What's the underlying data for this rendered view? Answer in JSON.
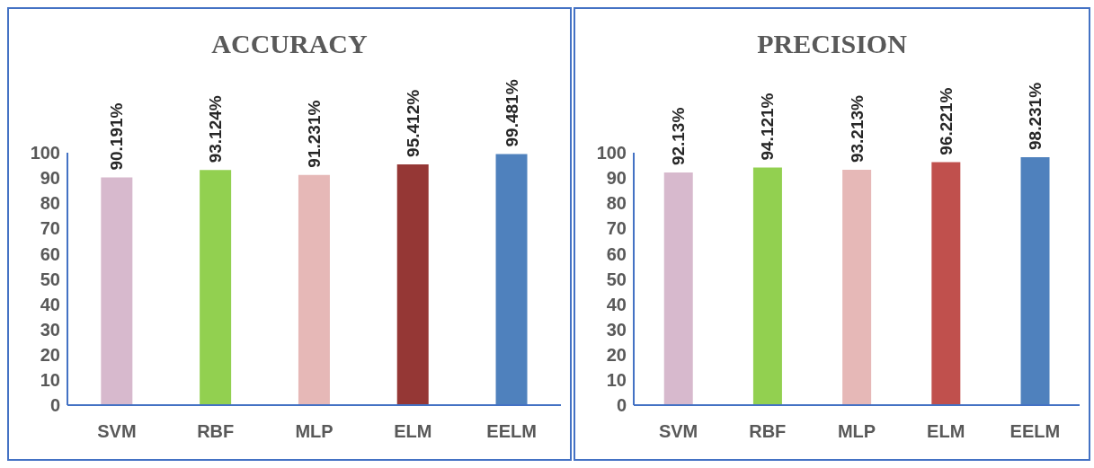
{
  "chart_data": [
    {
      "type": "bar",
      "title": "ACCURACY",
      "categories": [
        "SVM",
        "RBF",
        "MLP",
        "ELM",
        "EELM"
      ],
      "values": [
        90.191,
        93.124,
        91.231,
        95.412,
        99.481
      ],
      "colors": [
        "#d7b9cd",
        "#92d050",
        "#e6b8b7",
        "#953735",
        "#4f81bd"
      ],
      "value_labels": [
        "90.191%",
        "93.124%",
        "91.231%",
        "95.412%",
        "99.481%"
      ],
      "ylim": [
        0,
        100
      ],
      "yticks": [
        0,
        10,
        20,
        30,
        40,
        50,
        60,
        70,
        80,
        90,
        100
      ],
      "grid": false,
      "legend": false
    },
    {
      "type": "bar",
      "title": "PRECISION",
      "categories": [
        "SVM",
        "RBF",
        "MLP",
        "ELM",
        "EELM"
      ],
      "values": [
        92.13,
        94.121,
        93.213,
        96.221,
        98.231
      ],
      "colors": [
        "#d7b9cd",
        "#92d050",
        "#e6b8b7",
        "#c0504d",
        "#4f81bd"
      ],
      "value_labels": [
        "92.13%",
        "94.121%",
        "93.213%",
        "96.221%",
        "98.231%"
      ],
      "ylim": [
        0,
        100
      ],
      "yticks": [
        0,
        10,
        20,
        30,
        40,
        50,
        60,
        70,
        80,
        90,
        100
      ],
      "grid": false,
      "legend": false
    }
  ]
}
